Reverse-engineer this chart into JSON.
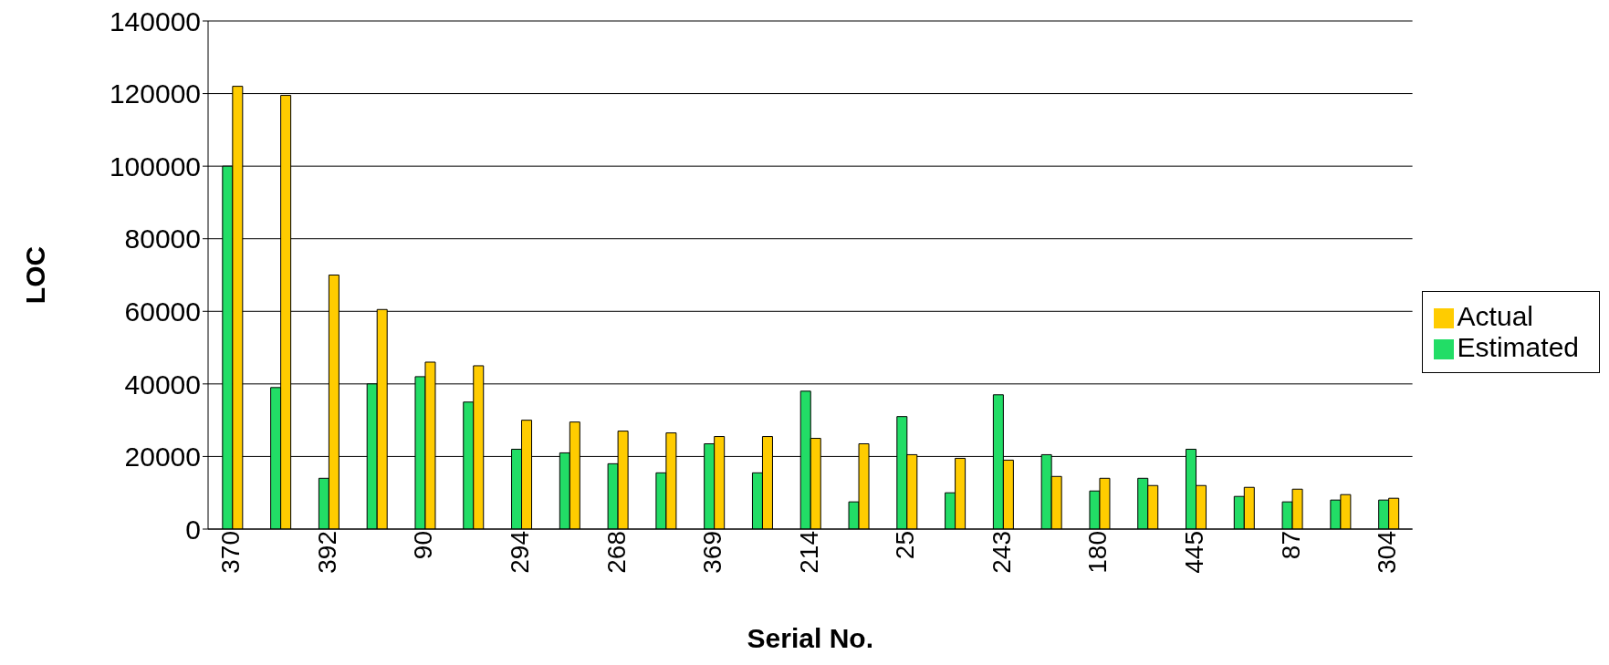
{
  "chart_data": {
    "type": "bar",
    "xlabel": "Serial No.",
    "ylabel": "LOC",
    "categories": [
      "370",
      null,
      "392",
      null,
      "90",
      null,
      "294",
      null,
      "268",
      null,
      "369",
      null,
      "214",
      null,
      "25",
      null,
      "243",
      null,
      "180",
      null,
      "445",
      null,
      "87",
      null,
      "304"
    ],
    "series": [
      {
        "name": "Estimated",
        "color": "#22dd66",
        "values": [
          100000,
          39000,
          14000,
          40000,
          42000,
          35000,
          22000,
          21000,
          18000,
          15500,
          23500,
          15500,
          38000,
          7500,
          31000,
          10000,
          37000,
          20500,
          10500,
          14000,
          22000,
          9000,
          7500,
          8000,
          8000
        ]
      },
      {
        "name": "Actual",
        "color": "#ffcc00",
        "values": [
          122000,
          119500,
          70000,
          60500,
          46000,
          45000,
          30000,
          29500,
          27000,
          26500,
          25500,
          25500,
          25000,
          23500,
          20500,
          19500,
          19000,
          14500,
          14000,
          12000,
          12000,
          11500,
          11000,
          9500,
          8500
        ]
      }
    ],
    "ylim": [
      0,
      140000
    ],
    "yticks": [
      0,
      20000,
      40000,
      60000,
      80000,
      100000,
      120000,
      140000
    ],
    "grid": "y",
    "legend": "right"
  }
}
